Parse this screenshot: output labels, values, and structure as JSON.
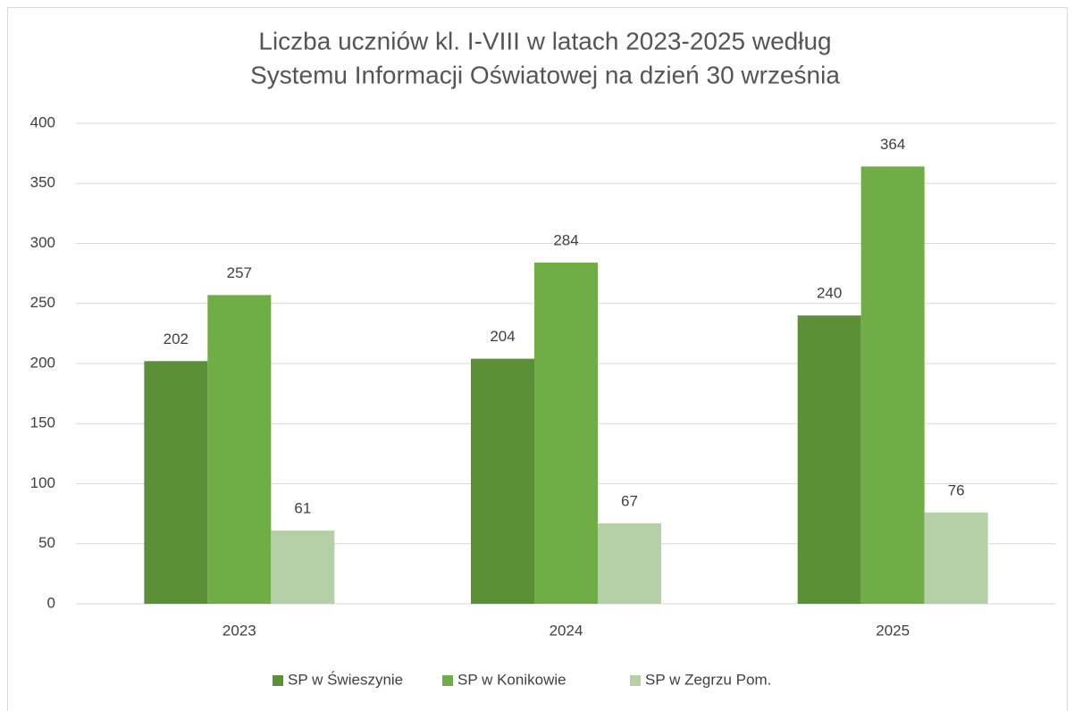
{
  "chart_data": {
    "type": "bar",
    "title": [
      "Liczba uczniów kl. I-VIII w latach 2023-2025 według",
      "Systemu Informacji Oświatowej na dzień 30 września"
    ],
    "categories": [
      "2023",
      "2024",
      "2025"
    ],
    "series": [
      {
        "name": "SP w Świeszynie",
        "color": "#5b9039",
        "values": [
          202,
          204,
          240
        ]
      },
      {
        "name": "SP w Konikowie",
        "color": "#70ad47",
        "values": [
          257,
          284,
          364
        ]
      },
      {
        "name": "SP w Zegrzu Pom.",
        "color": "#b5cfa6",
        "values": [
          61,
          67,
          76
        ]
      }
    ],
    "ylim": [
      0,
      400
    ],
    "yticks": [
      0,
      50,
      100,
      150,
      200,
      250,
      300,
      350,
      400
    ],
    "grid": true,
    "legend": "bottom"
  }
}
